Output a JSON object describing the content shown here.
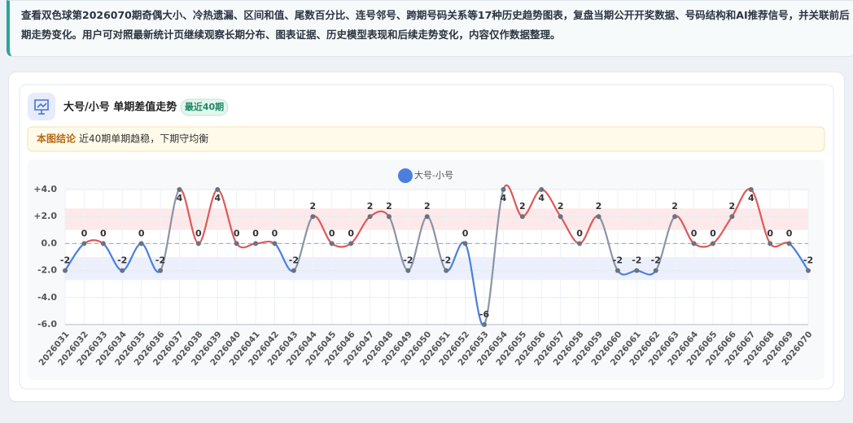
{
  "banner": "查看双色球第2026070期奇偶大小、冷热遗漏、区间和值、尾数百分比、连号邻号、跨期号码关系等17种历史趋势图表，复盘当期公开开奖数据、号码结构和AI推荐信号，并关联前后期走势变化。用户可对照最新统计页继续观察长期分布、图表证据、历史模型表现和后续走势变化，内容仅作数据整理。",
  "chart_data": {
    "type": "line",
    "title": "大号/小号 单期差值走势",
    "badge": "最近40期",
    "conclusion_label": "本图结论",
    "conclusion": "近40期单期趋稳，下期守均衡",
    "categories": [
      "2026031",
      "2026032",
      "2026033",
      "2026034",
      "2026035",
      "2026036",
      "2026037",
      "2026038",
      "2026039",
      "2026040",
      "2026041",
      "2026042",
      "2026043",
      "2026044",
      "2026045",
      "2026046",
      "2026047",
      "2026048",
      "2026049",
      "2026050",
      "2026051",
      "2026052",
      "2026053",
      "2026054",
      "2026055",
      "2026056",
      "2026057",
      "2026058",
      "2026059",
      "2026060",
      "2026061",
      "2026062",
      "2026063",
      "2026064",
      "2026065",
      "2026066",
      "2026067",
      "2026068",
      "2026069",
      "2026070"
    ],
    "series": [
      {
        "name": "大号-小号",
        "color": "#4a7fe0",
        "values": [
          -2,
          0,
          0,
          -2,
          0,
          -2,
          4,
          0,
          4,
          0,
          0,
          0,
          -2,
          2,
          0,
          0,
          2,
          2,
          -2,
          2,
          -2,
          0,
          -6,
          4,
          2,
          4,
          2,
          0,
          2,
          -2,
          -2,
          -2,
          2,
          0,
          0,
          2,
          4,
          0,
          0,
          -2
        ]
      }
    ],
    "up_color": "#dc5a5a",
    "down_color": "#4a7fe0",
    "cross_color": "#8a94a6",
    "bands": [
      {
        "from": 1,
        "to": 2.6,
        "color": "rgba(240,120,120,0.16)"
      },
      {
        "from": -2.7,
        "to": -1,
        "color": "rgba(110,140,240,0.13)"
      }
    ],
    "ylim": [
      -6,
      4
    ],
    "yticks": [
      {
        "value": -6,
        "label": "-6.0"
      },
      {
        "value": -4,
        "label": "-4.0"
      },
      {
        "value": -2,
        "label": "-2.0"
      },
      {
        "value": 0,
        "label": "0.0"
      },
      {
        "value": 2,
        "label": "+2.0"
      },
      {
        "value": 4,
        "label": "+4.0"
      }
    ],
    "grid": true
  }
}
